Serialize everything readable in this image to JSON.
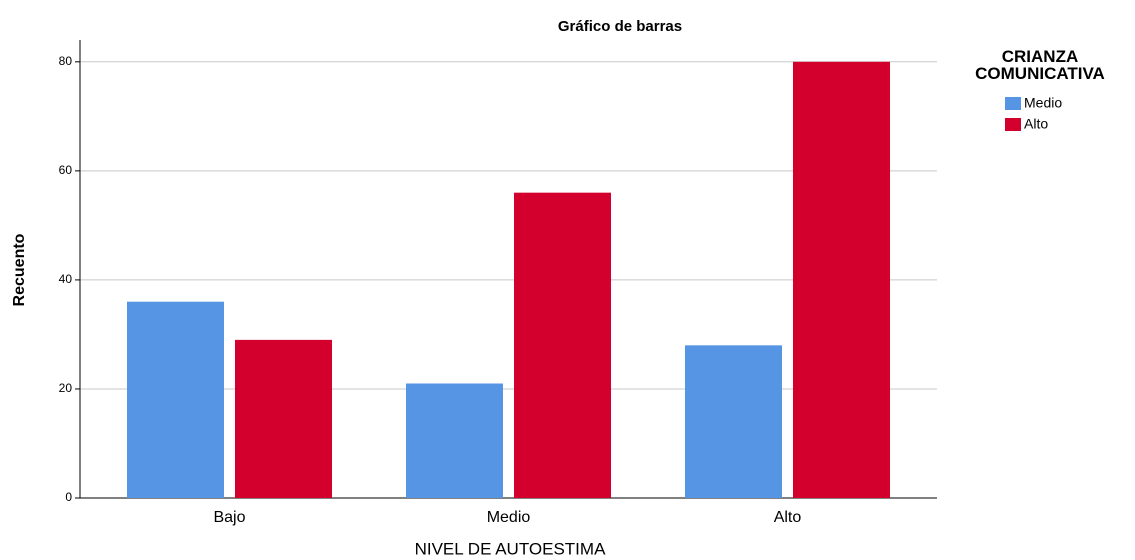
{
  "chart_data": {
    "type": "bar",
    "title": "Gráfico de barras",
    "x_label": "NIVEL DE AUTOESTIMA",
    "y_label": "Recuento",
    "categories": [
      "Bajo",
      "Medio",
      "Alto"
    ],
    "legend_title": "CRIANZA COMUNICATIVA",
    "series": [
      {
        "name": "Medio",
        "color": "#5694e4",
        "values": [
          36,
          21,
          28
        ]
      },
      {
        "name": "Alto",
        "color": "#d3002e",
        "values": [
          29,
          56,
          80
        ]
      }
    ],
    "ylim": [
      0,
      84
    ],
    "yticks": [
      0,
      20,
      40,
      60,
      80
    ],
    "grid": true,
    "legend": "right"
  }
}
